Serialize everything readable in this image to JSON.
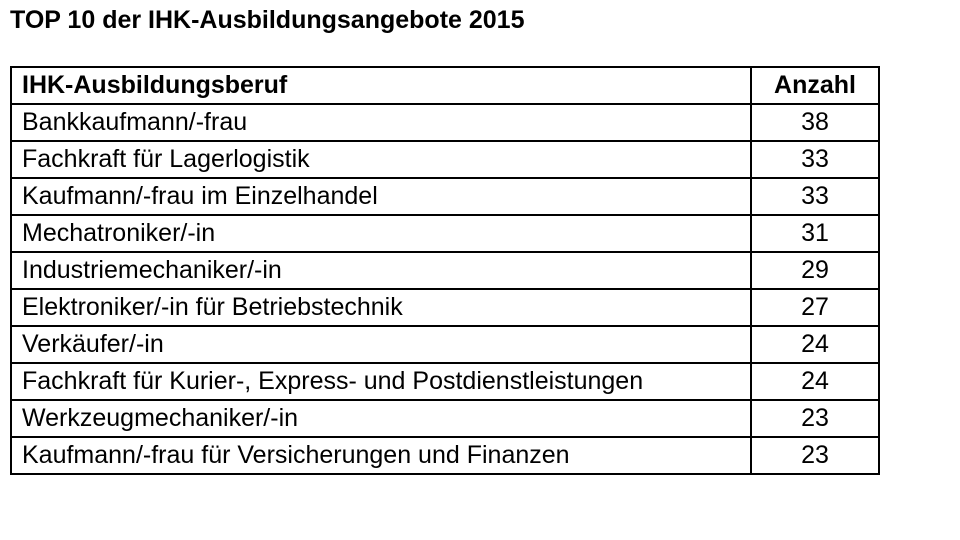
{
  "page_title": "TOP 10 der IHK-Ausbildungsangebote 2015",
  "table": {
    "header": {
      "occupation": "IHK-Ausbildungsberuf",
      "count": "Anzahl"
    },
    "rows": [
      {
        "occupation": "Bankkaufmann/-frau",
        "count": "38"
      },
      {
        "occupation": "Fachkraft für Lagerlogistik",
        "count": "33"
      },
      {
        "occupation": "Kaufmann/-frau im Einzelhandel",
        "count": "33"
      },
      {
        "occupation": "Mechatroniker/-in",
        "count": "31"
      },
      {
        "occupation": "Industriemechaniker/-in",
        "count": "29"
      },
      {
        "occupation": "Elektroniker/-in für Betriebstechnik",
        "count": "27"
      },
      {
        "occupation": "Verkäufer/-in",
        "count": "24"
      },
      {
        "occupation": "Fachkraft für Kurier-, Express- und Postdienstleistungen",
        "count": "24"
      },
      {
        "occupation": "Werkzeugmechaniker/-in",
        "count": "23"
      },
      {
        "occupation": "Kaufmann/-frau für Versicherungen und Finanzen",
        "count": "23"
      }
    ]
  },
  "chart_data": {
    "type": "table",
    "title": "TOP 10 der IHK-Ausbildungsangebote 2015",
    "columns": [
      "IHK-Ausbildungsberuf",
      "Anzahl"
    ],
    "categories": [
      "Bankkaufmann/-frau",
      "Fachkraft für Lagerlogistik",
      "Kaufmann/-frau im Einzelhandel",
      "Mechatroniker/-in",
      "Industriemechaniker/-in",
      "Elektroniker/-in für Betriebstechnik",
      "Verkäufer/-in",
      "Fachkraft für Kurier-, Express- und Postdienstleistungen",
      "Werkzeugmechaniker/-in",
      "Kaufmann/-frau für Versicherungen und Finanzen"
    ],
    "values": [
      38,
      33,
      33,
      31,
      29,
      27,
      24,
      24,
      23,
      23
    ],
    "text_color": "#000000",
    "border_color": "#000000",
    "background_color": "#ffffff"
  }
}
